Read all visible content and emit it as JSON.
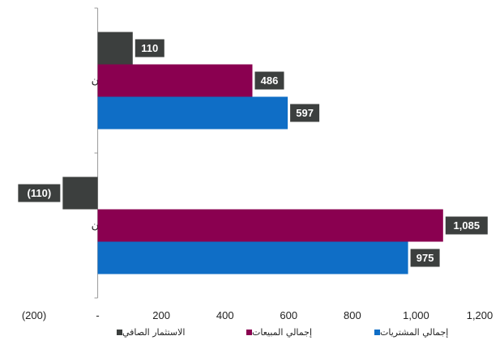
{
  "chart_data": {
    "type": "bar",
    "orientation": "horizontal",
    "categories": [
      "غير قطريون",
      "قطريون"
    ],
    "series": [
      {
        "name": "الاستثمار الصافي",
        "color": "#3c3f3e",
        "values": [
          110,
          -110
        ],
        "labels": [
          "110",
          "(110)"
        ]
      },
      {
        "name": "إجمالي المبيعات",
        "color": "#8a0050",
        "values": [
          486,
          1085
        ],
        "labels": [
          "486",
          "1,085"
        ]
      },
      {
        "name": "إجمالي المشتريات",
        "color": "#0f6ec6",
        "values": [
          597,
          975
        ],
        "labels": [
          "597",
          "975"
        ]
      }
    ],
    "xlim": [
      -200,
      1200
    ],
    "xticks": [
      -200,
      0,
      200,
      400,
      600,
      800,
      1000,
      1200
    ],
    "xtick_labels": [
      "(200)",
      "-",
      "200",
      "400",
      "600",
      "800",
      "1,000",
      "1,200"
    ],
    "legend_position": "bottom",
    "title": "",
    "xlabel": "",
    "ylabel": ""
  }
}
